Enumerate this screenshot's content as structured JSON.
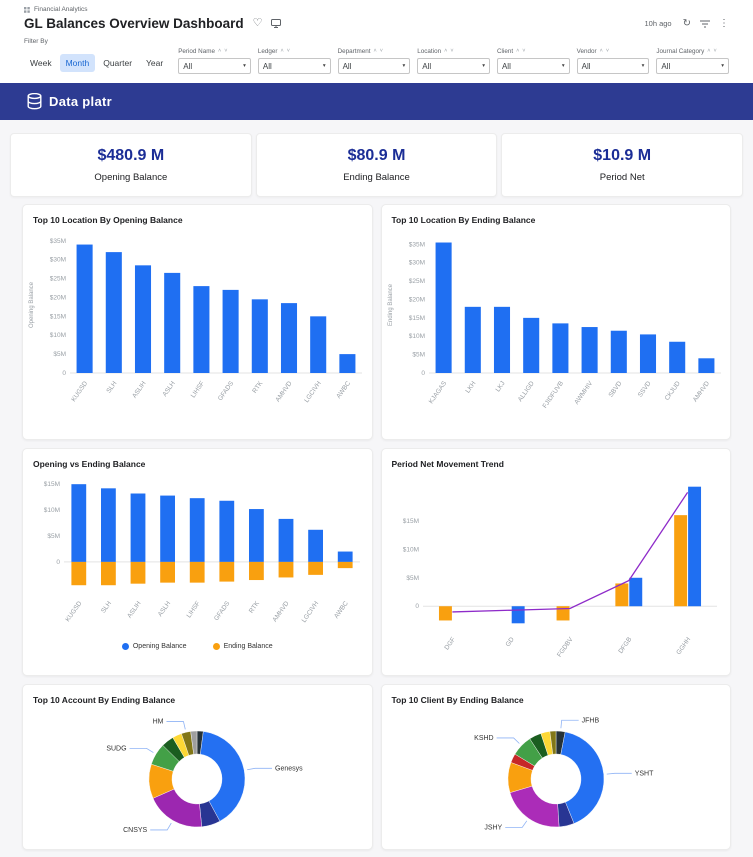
{
  "header": {
    "breadcrumb": "Financial Analytics",
    "title": "GL Balances Overview Dashboard",
    "updated": "10h ago"
  },
  "filters": {
    "label": "Filter By",
    "time_grains": [
      "Week",
      "Month",
      "Quarter",
      "Year"
    ],
    "active_grain": "Month",
    "dropdowns": [
      {
        "label": "Period Name",
        "value": "All"
      },
      {
        "label": "Ledger",
        "value": "All"
      },
      {
        "label": "Department",
        "value": "All"
      },
      {
        "label": "Location",
        "value": "All"
      },
      {
        "label": "Client",
        "value": "All"
      },
      {
        "label": "Vendor",
        "value": "All"
      },
      {
        "label": "Journal Category",
        "value": "All"
      }
    ]
  },
  "brand": {
    "name": "Data platr"
  },
  "kpis": [
    {
      "value": "$480.9 M",
      "label": "Opening Balance"
    },
    {
      "value": "$80.9 M",
      "label": "Ending Balance"
    },
    {
      "value": "$10.9 M",
      "label": "Period Net"
    }
  ],
  "colors": {
    "accent_blue": "#1f6ff2",
    "accent_orange": "#f9a00f",
    "trend_purple": "#8e2bc9",
    "kpi_navy": "#1b2d96",
    "banner_indigo": "#2d3b92"
  },
  "chart_data": [
    {
      "type": "bar",
      "title": "Top 10 Location By Opening Balance",
      "ylabel": "Opening Balance",
      "categories": [
        "KUGSD",
        "SLH",
        "ASLIH",
        "ASLH",
        "LIHSF",
        "GFADS",
        "RTK",
        "AMHVD",
        "LGCIVH",
        "AWBC"
      ],
      "values": [
        34,
        32,
        28.5,
        26.5,
        23,
        22,
        19.5,
        18.5,
        15,
        5
      ],
      "ytick_labels": [
        "$35M",
        "$30M",
        "$25M",
        "$20M",
        "$15M",
        "$10M",
        "$5M",
        "0"
      ],
      "ytick_values": [
        35,
        30,
        25,
        20,
        15,
        10,
        5,
        0
      ],
      "ymax": 36,
      "ymin": 0,
      "bar_color": "#1f6ff2"
    },
    {
      "type": "bar",
      "title": "Top 10 Location By Ending Balance",
      "ylabel": "Ending Balance",
      "categories": [
        "KJAGAS",
        "LKH",
        "LKJ",
        "ALLIGD",
        "FJIDFUVB",
        "AWMHIV",
        "SBVD",
        "SSVD",
        "CKJUD",
        "AMHVD"
      ],
      "values": [
        35.5,
        18,
        18,
        15,
        13.5,
        12.5,
        11.5,
        10.5,
        8.5,
        4
      ],
      "ytick_labels": [
        "$35M",
        "$30M",
        "$25M",
        "$20M",
        "$15M",
        "$10M",
        "$5M",
        "0"
      ],
      "ytick_values": [
        35,
        30,
        25,
        20,
        15,
        10,
        5,
        0
      ],
      "ymax": 37,
      "ymin": 0,
      "bar_color": "#1f6ff2"
    },
    {
      "type": "stacked-bar",
      "title": "Opening vs Ending Balance",
      "categories": [
        "KUGSD",
        "SLH",
        "ASLIH",
        "ASLH",
        "LIHSF",
        "GFADS",
        "RTK",
        "AMHVD",
        "LGCIVH",
        "AWBC"
      ],
      "series": [
        {
          "name": "Opening Balance",
          "color": "#1f6ff2",
          "values": [
            15,
            14.2,
            13.2,
            12.8,
            12.3,
            11.8,
            10.2,
            8.3,
            6.2,
            2
          ]
        },
        {
          "name": "Ending Balance",
          "color": "#f9a00f",
          "values": [
            -4.5,
            -4.5,
            -4.2,
            -4,
            -4,
            -3.8,
            -3.5,
            -3,
            -2.5,
            -1.2
          ]
        }
      ],
      "ytick_labels": [
        "$15M",
        "$10M",
        "$5M",
        "0"
      ],
      "ytick_values": [
        15,
        10,
        5,
        0
      ],
      "ymax": 16,
      "ymin": -6,
      "legend_position": "bottom"
    },
    {
      "type": "combo",
      "title": "Period Net Movement Trend",
      "categories": [
        "DGF",
        "GD",
        "FGDBV",
        "DFGB",
        "GGHH"
      ],
      "bar_series": [
        {
          "color": "#f9a00f",
          "values": [
            -2.5,
            0,
            -2.5,
            4,
            16
          ]
        },
        {
          "color": "#1f6ff2",
          "values": [
            0,
            -3,
            0,
            5,
            21
          ]
        }
      ],
      "line_series": {
        "color": "#8e2bc9",
        "values": [
          -1,
          -0.7,
          -0.4,
          4.5,
          20
        ]
      },
      "ytick_labels": [
        "$15M",
        "$10M",
        "$5M",
        "0"
      ],
      "ytick_values": [
        15,
        10,
        5,
        0
      ],
      "ymax": 22,
      "ymin": -4
    },
    {
      "type": "pie",
      "title": "Top 10 Account By Ending Balance",
      "segments": [
        {
          "label": "",
          "value": 2,
          "color": "#263238"
        },
        {
          "label": "Genesys",
          "value": 38,
          "color": "#2470f2"
        },
        {
          "label": "",
          "value": 6,
          "color": "#283593"
        },
        {
          "label": "CNSYS",
          "value": 19,
          "color": "#9c27b0"
        },
        {
          "label": "",
          "value": 11,
          "color": "#f9a00f"
        },
        {
          "label": "SUDG",
          "value": 7,
          "color": "#43a047"
        },
        {
          "label": "",
          "value": 4,
          "color": "#1b5e20"
        },
        {
          "label": "",
          "value": 3,
          "color": "#fdd835"
        },
        {
          "label": "HM",
          "value": 3,
          "color": "#827717"
        },
        {
          "label": "",
          "value": 2,
          "color": "#9e9e9e"
        }
      ]
    },
    {
      "type": "pie",
      "title": "Top 10 Client By Ending Balance",
      "segments": [
        {
          "label": "JFHB",
          "value": 3,
          "color": "#263238"
        },
        {
          "label": "YSHT",
          "value": 40,
          "color": "#2470f2"
        },
        {
          "label": "",
          "value": 5,
          "color": "#283593"
        },
        {
          "label": "JSHY",
          "value": 21,
          "color": "#ab2cb8"
        },
        {
          "label": "",
          "value": 10,
          "color": "#f9a00f"
        },
        {
          "label": "",
          "value": 3,
          "color": "#c62828"
        },
        {
          "label": "KSHD",
          "value": 7,
          "color": "#43a047"
        },
        {
          "label": "",
          "value": 4,
          "color": "#1b5e20"
        },
        {
          "label": "",
          "value": 3,
          "color": "#fdd835"
        },
        {
          "label": "",
          "value": 2,
          "color": "#827717"
        }
      ]
    }
  ]
}
